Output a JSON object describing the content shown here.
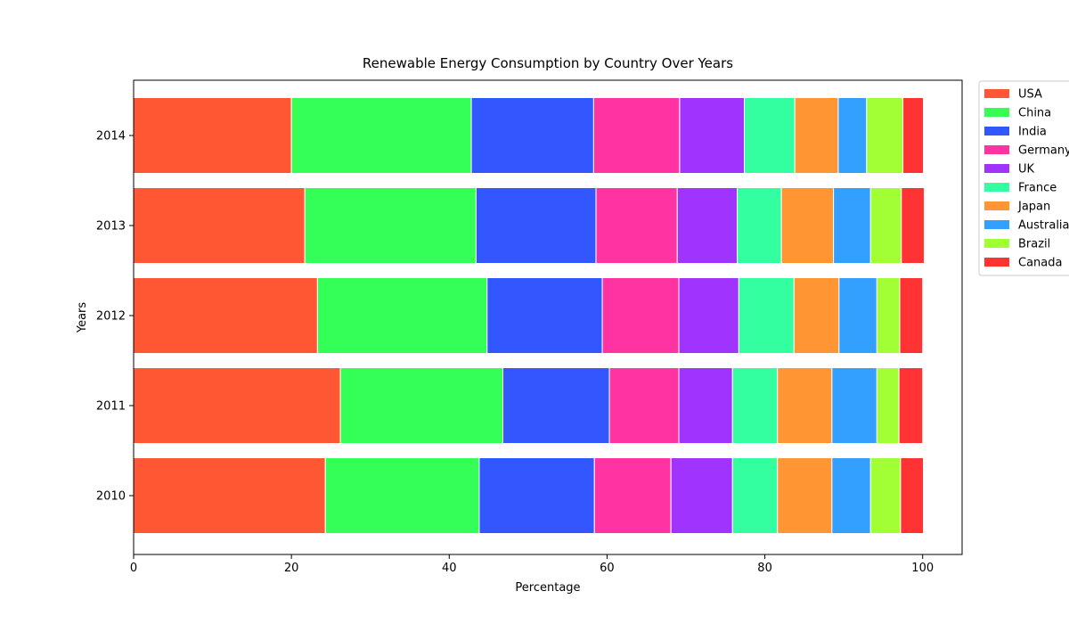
{
  "chart_data": {
    "type": "bar",
    "orientation": "horizontal",
    "stacked": true,
    "title": "Renewable Energy Consumption by Country Over Years",
    "xlabel": "Percentage",
    "ylabel": "Years",
    "xlim": [
      0,
      105
    ],
    "xticks": [
      "0",
      "20",
      "40",
      "60",
      "80",
      "100"
    ],
    "categories": [
      "2010",
      "2011",
      "2012",
      "2013",
      "2014"
    ],
    "legend_position": "upper right, outside plot",
    "grid": false,
    "series": [
      {
        "name": "USA",
        "color": "#ff5733",
        "values": [
          24.3,
          26.2,
          23.3,
          21.7,
          20.0
        ]
      },
      {
        "name": "China",
        "color": "#33ff57",
        "values": [
          19.5,
          20.6,
          21.5,
          21.7,
          22.8
        ]
      },
      {
        "name": "India",
        "color": "#3357ff",
        "values": [
          14.6,
          13.5,
          14.6,
          15.2,
          15.5
        ]
      },
      {
        "name": "Germany",
        "color": "#ff33a1",
        "values": [
          9.7,
          8.8,
          9.7,
          10.3,
          10.9
        ]
      },
      {
        "name": "UK",
        "color": "#a133ff",
        "values": [
          7.8,
          6.8,
          7.6,
          7.6,
          8.2
        ]
      },
      {
        "name": "France",
        "color": "#33ffa1",
        "values": [
          5.7,
          5.7,
          7.0,
          5.6,
          6.4
        ]
      },
      {
        "name": "Japan",
        "color": "#ff9633",
        "values": [
          6.9,
          6.9,
          5.7,
          6.6,
          5.5
        ]
      },
      {
        "name": "Australia",
        "color": "#339fff",
        "values": [
          4.9,
          5.7,
          4.8,
          4.7,
          3.6
        ]
      },
      {
        "name": "Brazil",
        "color": "#a1ff33",
        "values": [
          3.8,
          2.8,
          2.9,
          3.9,
          4.6
        ]
      },
      {
        "name": "Canada",
        "color": "#ff3333",
        "values": [
          2.9,
          3.0,
          2.9,
          2.9,
          2.6
        ]
      }
    ]
  }
}
